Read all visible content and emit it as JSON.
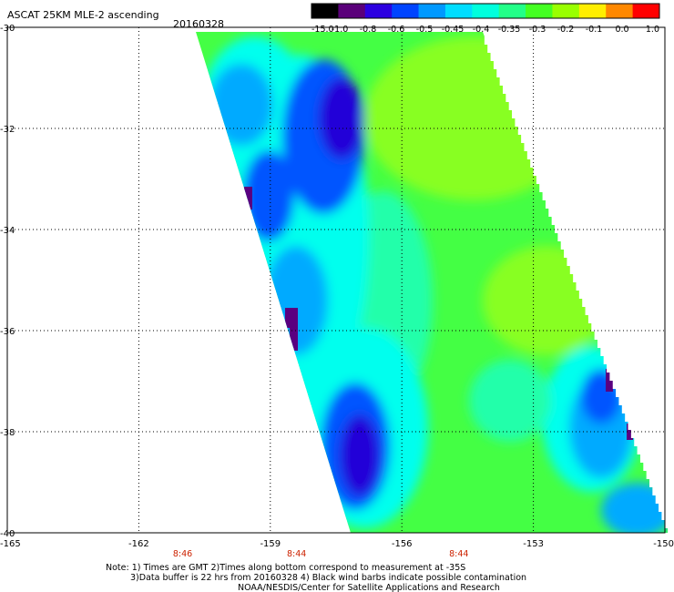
{
  "header": {
    "title": "ASCAT 25KM MLE-2 ascending",
    "date": "20160328"
  },
  "colorbar": {
    "labels": [
      "-15.0",
      "-1.0",
      "-0.8",
      "-0.6",
      "-0.5",
      "-0.45",
      "-0.4",
      "-0.35",
      "-0.3",
      "-0.2",
      "-0.1",
      "0.0",
      "1.0"
    ],
    "colors": [
      "#000000",
      "#5a007a",
      "#2c00e0",
      "#0044ff",
      "#0099ff",
      "#00ddff",
      "#00ffdd",
      "#22ff88",
      "#44ff22",
      "#99ff00",
      "#ffee00",
      "#ff8800",
      "#ff0000"
    ]
  },
  "map": {
    "lon_ticks": [
      "-165",
      "-162",
      "-159",
      "-156",
      "-153",
      "-150"
    ],
    "lon_values": [
      -165,
      -162,
      -159,
      -156,
      -153,
      -150
    ],
    "lat_ticks": [
      "-30",
      "-32",
      "-34",
      "-36",
      "-38",
      "-40"
    ],
    "lat_values": [
      -30,
      -32,
      -34,
      -36,
      -38,
      -40
    ],
    "lon_range": [
      -165,
      -150
    ],
    "lat_range": [
      -40,
      -30
    ],
    "times": [
      {
        "label": "8:46",
        "lon": -161.0
      },
      {
        "label": "8:44",
        "lon": -158.4
      },
      {
        "label": "8:44",
        "lon": -154.7
      }
    ],
    "swath_colors": {
      "deep": "#2200d8",
      "blue": "#0055ff",
      "sky": "#00aaff",
      "cyan": "#00ffee",
      "aqua": "#22ffaa",
      "green": "#44ff44",
      "lime": "#88ff22",
      "yellowgreen": "#aaff00",
      "purple": "#5a0080"
    }
  },
  "notes": {
    "line1": "Note: 1) Times are GMT 2)Times along bottom correspond to measurement at -35S",
    "line2": "3)Data buffer is 22 hrs from 20160328 4) Black wind barbs indicate possible contamination",
    "line3": "NOAA/NESDIS/Center for Satellite Applications and Research"
  }
}
